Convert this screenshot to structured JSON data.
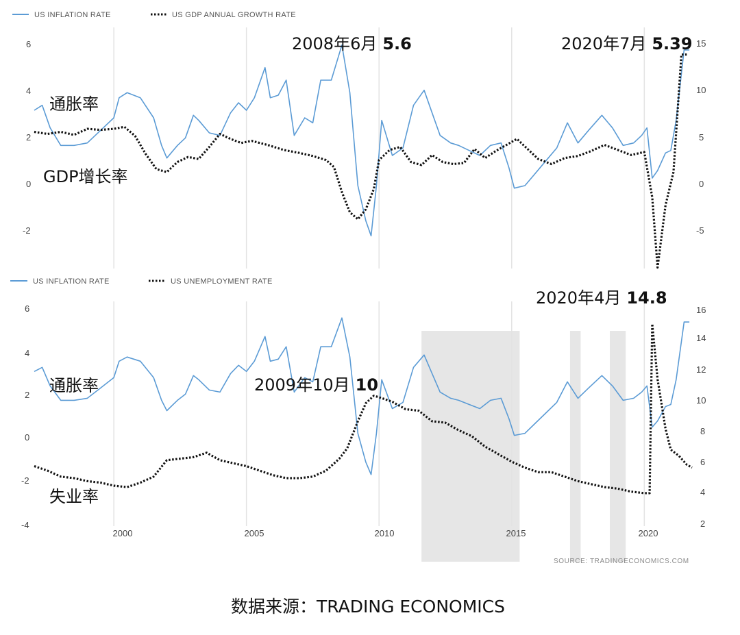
{
  "chart_data": [
    {
      "type": "line",
      "legend": [
        {
          "label": "US INFLATION RATE",
          "style": "solid",
          "color": "#5b9bd5"
        },
        {
          "label": "US GDP ANNUAL GROWTH RATE",
          "style": "dotted",
          "color": "#111111"
        }
      ],
      "legend_placement": "top-left",
      "x_ticks": [
        "2000",
        "2005",
        "2010",
        "2015",
        "2020"
      ],
      "xlim": [
        1997.0,
        2021.8
      ],
      "y_left_ticks": [
        "-2",
        "0",
        "2",
        "4",
        "6"
      ],
      "y_left_lim": [
        -3.3,
        6.3
      ],
      "y_right_ticks": [
        "-5",
        "0",
        "5",
        "10",
        "15"
      ],
      "y_right_lim": [
        -9.1,
        14.9
      ],
      "grid": "vertical",
      "series_labels": {
        "inflation": "通胀率",
        "gdp": "GDP增长率"
      },
      "annotations": [
        {
          "text_a": "2008年6月",
          "text_b": "5.6"
        },
        {
          "text_a": "2020年7月",
          "text_b": "5.39"
        }
      ],
      "series": [
        {
          "name": "US INFLATION RATE",
          "axis": "left",
          "x": [
            1997.0,
            1997.3,
            1997.6,
            1998.0,
            1998.5,
            1999.0,
            1999.5,
            2000.0,
            2000.2,
            2000.5,
            2001.0,
            2001.5,
            2001.8,
            2002.0,
            2002.4,
            2002.7,
            2003.0,
            2003.2,
            2003.6,
            2004.0,
            2004.4,
            2004.7,
            2005.0,
            2005.3,
            2005.7,
            2005.9,
            2006.2,
            2006.5,
            2006.8,
            2007.2,
            2007.5,
            2007.8,
            2008.2,
            2008.6,
            2008.9,
            2009.2,
            2009.5,
            2009.7,
            2009.9,
            2010.1,
            2010.5,
            2010.9,
            2011.3,
            2011.7,
            2012.0,
            2012.3,
            2012.7,
            2013.0,
            2013.4,
            2013.8,
            2014.2,
            2014.6,
            2014.9,
            2015.1,
            2015.5,
            2015.9,
            2016.3,
            2016.7,
            2017.1,
            2017.5,
            2017.9,
            2018.4,
            2018.8,
            2019.2,
            2019.6,
            2019.9,
            2020.1,
            2020.3,
            2020.5,
            2020.8,
            2021.0,
            2021.2,
            2021.5,
            2021.7
          ],
          "y": [
            3.0,
            3.2,
            2.3,
            1.6,
            1.6,
            1.7,
            2.2,
            2.7,
            3.5,
            3.7,
            3.5,
            2.7,
            1.6,
            1.1,
            1.6,
            1.9,
            2.8,
            2.6,
            2.1,
            2.0,
            2.9,
            3.3,
            3.0,
            3.5,
            4.7,
            3.5,
            3.6,
            4.2,
            2.0,
            2.7,
            2.5,
            4.2,
            4.2,
            5.6,
            3.7,
            0.0,
            -1.4,
            -2.0,
            0.0,
            2.6,
            1.2,
            1.5,
            3.2,
            3.8,
            2.9,
            2.0,
            1.7,
            1.6,
            1.4,
            1.2,
            1.6,
            1.7,
            0.7,
            -0.1,
            0.0,
            0.5,
            1.0,
            1.5,
            2.5,
            1.7,
            2.2,
            2.8,
            2.3,
            1.6,
            1.7,
            2.0,
            2.3,
            0.3,
            0.6,
            1.3,
            1.4,
            2.6,
            5.4,
            5.4
          ]
        },
        {
          "name": "US GDP ANNUAL GROWTH RATE",
          "axis": "right",
          "x": [
            1997.0,
            1997.5,
            1998.0,
            1998.5,
            1999.0,
            1999.5,
            2000.0,
            2000.4,
            2000.8,
            2001.2,
            2001.6,
            2002.0,
            2002.4,
            2002.8,
            2003.2,
            2003.6,
            2004.0,
            2004.4,
            2004.8,
            2005.2,
            2005.8,
            2006.4,
            2007.0,
            2007.5,
            2008.0,
            2008.3,
            2008.6,
            2008.9,
            2009.2,
            2009.5,
            2009.8,
            2010.0,
            2010.4,
            2010.8,
            2011.2,
            2011.6,
            2012.0,
            2012.4,
            2012.8,
            2013.2,
            2013.6,
            2014.0,
            2014.4,
            2014.8,
            2015.2,
            2015.6,
            2016.0,
            2016.5,
            2017.0,
            2017.5,
            2018.0,
            2018.5,
            2019.0,
            2019.5,
            2020.0,
            2020.3,
            2020.5,
            2020.8,
            2021.1,
            2021.4,
            2021.6
          ],
          "y": [
            4.5,
            4.3,
            4.5,
            4.2,
            4.8,
            4.7,
            4.8,
            5.0,
            4.1,
            2.3,
            0.8,
            0.5,
            1.5,
            2.0,
            1.8,
            3.0,
            4.3,
            3.8,
            3.4,
            3.6,
            3.2,
            2.7,
            2.4,
            2.1,
            1.7,
            1.0,
            -1.5,
            -3.5,
            -4.2,
            -3.2,
            -1.2,
            1.7,
            2.7,
            3.0,
            1.5,
            1.2,
            2.2,
            1.5,
            1.3,
            1.4,
            2.8,
            1.9,
            2.6,
            3.2,
            3.8,
            2.8,
            1.8,
            1.3,
            1.9,
            2.1,
            2.6,
            3.2,
            2.7,
            2.2,
            2.5,
            -2.0,
            -9.0,
            -2.8,
            0.5,
            12.2,
            12.2
          ]
        }
      ]
    },
    {
      "type": "line",
      "legend": [
        {
          "label": "US INFLATION RATE",
          "style": "solid",
          "color": "#5b9bd5"
        },
        {
          "label": "US UNEMPLOYMENT RATE",
          "style": "dotted",
          "color": "#111111"
        }
      ],
      "legend_placement": "top-left",
      "x_ticks": [
        "2000",
        "2005",
        "2010",
        "2015",
        "2020"
      ],
      "xlim": [
        1997.0,
        2021.8
      ],
      "y_left_ticks": [
        "-4",
        "-2",
        "0",
        "2",
        "4",
        "6"
      ],
      "y_left_lim": [
        -4.5,
        6.4
      ],
      "y_right_ticks": [
        "2",
        "4",
        "6",
        "8",
        "10",
        "12",
        "14",
        "16"
      ],
      "y_right_lim": [
        1.3,
        16.3
      ],
      "grid": "vertical",
      "series_labels": {
        "inflation": "通胀率",
        "unemployment": "失业率"
      },
      "annotations": [
        {
          "text_a": "2009年10月",
          "text_b": "10"
        },
        {
          "text_a": "2020年4月",
          "text_b": "14.8"
        }
      ],
      "source": "SOURCE:   TRADINGECONOMICS.COM",
      "series": [
        {
          "name": "US INFLATION RATE",
          "axis": "left",
          "x": [
            1997.0,
            1997.3,
            1997.6,
            1998.0,
            1998.5,
            1999.0,
            1999.5,
            2000.0,
            2000.2,
            2000.5,
            2001.0,
            2001.5,
            2001.8,
            2002.0,
            2002.4,
            2002.7,
            2003.0,
            2003.2,
            2003.6,
            2004.0,
            2004.4,
            2004.7,
            2005.0,
            2005.3,
            2005.7,
            2005.9,
            2006.2,
            2006.5,
            2006.8,
            2007.2,
            2007.5,
            2007.8,
            2008.2,
            2008.6,
            2008.9,
            2009.2,
            2009.5,
            2009.7,
            2009.9,
            2010.1,
            2010.5,
            2010.9,
            2011.3,
            2011.7,
            2012.0,
            2012.3,
            2012.7,
            2013.0,
            2013.4,
            2013.8,
            2014.2,
            2014.6,
            2014.9,
            2015.1,
            2015.5,
            2015.9,
            2016.3,
            2016.7,
            2017.1,
            2017.5,
            2017.9,
            2018.4,
            2018.8,
            2019.2,
            2019.6,
            2019.9,
            2020.1,
            2020.3,
            2020.5,
            2020.8,
            2021.0,
            2021.2,
            2021.5,
            2021.7
          ],
          "y": [
            3.0,
            3.2,
            2.3,
            1.6,
            1.6,
            1.7,
            2.2,
            2.7,
            3.5,
            3.7,
            3.5,
            2.7,
            1.6,
            1.1,
            1.6,
            1.9,
            2.8,
            2.6,
            2.1,
            2.0,
            2.9,
            3.3,
            3.0,
            3.5,
            4.7,
            3.5,
            3.6,
            4.2,
            2.0,
            2.7,
            2.5,
            4.2,
            4.2,
            5.6,
            3.7,
            0.0,
            -1.4,
            -2.0,
            0.0,
            2.6,
            1.2,
            1.5,
            3.2,
            3.8,
            2.9,
            2.0,
            1.7,
            1.6,
            1.4,
            1.2,
            1.6,
            1.7,
            0.7,
            -0.1,
            0.0,
            0.5,
            1.0,
            1.5,
            2.5,
            1.7,
            2.2,
            2.8,
            2.3,
            1.6,
            1.7,
            2.0,
            2.3,
            0.3,
            0.6,
            1.3,
            1.4,
            2.6,
            5.4,
            5.4
          ]
        },
        {
          "name": "US UNEMPLOYMENT RATE",
          "axis": "right",
          "x": [
            1997.0,
            1997.5,
            1998.0,
            1998.5,
            1999.0,
            1999.5,
            2000.0,
            2000.5,
            2001.0,
            2001.5,
            2002.0,
            2002.5,
            2003.0,
            2003.5,
            2004.0,
            2004.5,
            2005.0,
            2005.5,
            2006.0,
            2006.5,
            2007.0,
            2007.5,
            2008.0,
            2008.5,
            2008.8,
            2009.2,
            2009.5,
            2009.8,
            2010.0,
            2010.5,
            2011.0,
            2011.5,
            2012.0,
            2012.5,
            2013.0,
            2013.5,
            2014.0,
            2014.5,
            2015.0,
            2015.5,
            2016.0,
            2016.5,
            2017.0,
            2017.5,
            2018.0,
            2018.5,
            2019.0,
            2019.5,
            2020.0,
            2020.2,
            2020.3,
            2020.5,
            2020.8,
            2021.0,
            2021.3,
            2021.6,
            2021.8
          ],
          "y": [
            5.3,
            5.0,
            4.6,
            4.5,
            4.3,
            4.2,
            4.0,
            3.9,
            4.2,
            4.6,
            5.7,
            5.8,
            5.9,
            6.2,
            5.7,
            5.5,
            5.3,
            5.0,
            4.7,
            4.5,
            4.5,
            4.6,
            5.0,
            5.8,
            6.5,
            8.3,
            9.5,
            10.0,
            9.9,
            9.6,
            9.1,
            9.0,
            8.3,
            8.2,
            7.7,
            7.3,
            6.6,
            6.1,
            5.6,
            5.2,
            4.9,
            4.9,
            4.6,
            4.3,
            4.1,
            3.9,
            3.8,
            3.6,
            3.5,
            3.5,
            14.8,
            11.1,
            7.8,
            6.4,
            6.0,
            5.4,
            5.2
          ]
        }
      ],
      "shaded_regions": [
        [
          2011.6,
          2015.3
        ],
        [
          2017.2,
          2017.6
        ],
        [
          2018.7,
          2019.3
        ]
      ]
    }
  ],
  "footer": {
    "text": "数据来源：TRADING ECONOMICS"
  },
  "colors": {
    "inflation": "#5b9bd5",
    "dotted": "#111111",
    "grid": "#e3e3e3",
    "shade": "#e6e6e6"
  }
}
